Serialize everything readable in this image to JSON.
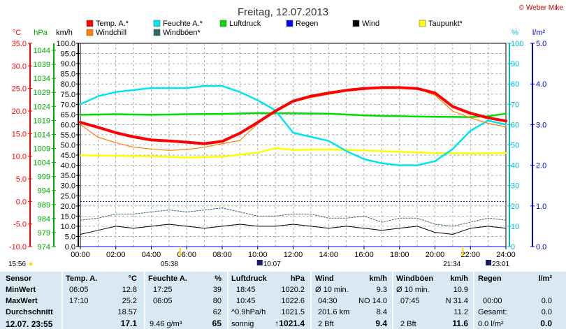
{
  "title": "Freitag, 12.07.2013",
  "copyright": "© Weber Mike",
  "colors": {
    "temp": "#ff0000",
    "feuchte": "#00e5ee",
    "luftdruck": "#00dd00",
    "regen": "#0000ff",
    "wind": "#000000",
    "taupunkt": "#ffff00",
    "windchill": "#ff8000",
    "windboeen": "#336666"
  },
  "legend": [
    {
      "key": "temp",
      "label": "Temp. A.*",
      "color": "#ff0000"
    },
    {
      "key": "feuchte",
      "label": "Feuchte A.*",
      "color": "#00e5ee"
    },
    {
      "key": "luftdruck",
      "label": "Luftdruck",
      "color": "#00dd00"
    },
    {
      "key": "regen",
      "label": "Regen",
      "color": "#0000ff"
    },
    {
      "key": "wind",
      "label": "Wind",
      "color": "#000000"
    },
    {
      "key": "taupunkt",
      "label": "Taupunkt*",
      "color": "#ffff00"
    },
    {
      "key": "windchill",
      "label": "Windchill",
      "color": "#ff8000"
    },
    {
      "key": "windboeen",
      "label": "Windböen*",
      "color": "#336666"
    }
  ],
  "axis_units": {
    "temp": "°C",
    "pressure": "hPa",
    "wind": "km/h",
    "humidity": "%",
    "rain": "l/m²"
  },
  "sun": {
    "sunrise": "05:38",
    "sunset": "21:34",
    "moonrise": "10:07",
    "moonset": "23:01",
    "first_label": "15:56"
  },
  "chart_data": {
    "type": "line",
    "x_unit": "hours",
    "x_ticks": [
      "00:00",
      "02:00",
      "04:00",
      "06:00",
      "08:00",
      "10:00",
      "12:00",
      "14:00",
      "16:00",
      "18:00",
      "20:00",
      "22:00",
      "24:00"
    ],
    "xlim": [
      0,
      24
    ],
    "axes": {
      "temp_c": {
        "ylim": [
          -10,
          35
        ],
        "ticks": [
          "35.0",
          "30.0",
          "25.0",
          "20.0",
          "15.0",
          "10.0",
          "5.0",
          "0.0",
          "-5.0",
          "-10.0"
        ]
      },
      "pressure_hpa": {
        "ylim": [
          974,
          1046.5
        ],
        "ticks": [
          "1044",
          "1039",
          "1034",
          "1029",
          "1024",
          "1019",
          "1014",
          "1009",
          "1004",
          "999",
          "994",
          "989",
          "984",
          "979",
          "974"
        ]
      },
      "wind_kmh": {
        "ylim": [
          0,
          100
        ],
        "ticks": [
          "100.0",
          "95.0",
          "90.0",
          "85.0",
          "80.0",
          "75.0",
          "70.0",
          "65.0",
          "60.0",
          "55.0",
          "50.0",
          "45.0",
          "40.0",
          "35.0",
          "30.0",
          "25.0",
          "20.0",
          "15.0",
          "10.0",
          "5.0",
          "0.0"
        ]
      },
      "humidity_pct": {
        "ylim": [
          0,
          100
        ],
        "ticks": [
          "100",
          "90",
          "80",
          "70",
          "60",
          "50",
          "40",
          "30",
          "20",
          "10",
          "0"
        ]
      },
      "rain_lm2": {
        "ylim": [
          0,
          5
        ],
        "ticks": [
          "5.0",
          "4.0",
          "3.0",
          "2.0",
          "1.0",
          "0.0"
        ]
      }
    },
    "series": [
      {
        "name": "Temp. A.*",
        "axis": "temp_c",
        "x": [
          0,
          1,
          2,
          3,
          4,
          5,
          6,
          7,
          8,
          9,
          10,
          11,
          12,
          13,
          14,
          15,
          16,
          17,
          18,
          19,
          20,
          21,
          22,
          23,
          24
        ],
        "y": [
          17.5,
          16.4,
          15.2,
          14.3,
          13.6,
          13.4,
          13.1,
          12.8,
          13.3,
          15.1,
          17.5,
          20.0,
          22.2,
          23.3,
          24.0,
          24.6,
          25.0,
          25.2,
          25.2,
          25.0,
          24.0,
          21.0,
          19.5,
          18.5,
          17.8
        ]
      },
      {
        "name": "Windchill",
        "axis": "temp_c",
        "x": [
          0,
          1,
          2,
          3,
          4,
          5,
          6,
          7,
          8,
          9,
          10,
          11,
          12,
          13,
          14,
          15,
          16,
          17,
          18,
          19,
          20,
          21,
          22,
          23,
          24
        ],
        "y": [
          17.0,
          14.2,
          13.0,
          12.0,
          11.6,
          11.3,
          11.5,
          12.0,
          12.8,
          13.5,
          17.2,
          19.8,
          22.0,
          23.0,
          23.7,
          24.5,
          24.8,
          25.1,
          25.2,
          25.0,
          23.5,
          20.0,
          18.5,
          17.3,
          16.5
        ]
      },
      {
        "name": "Feuchte A.*",
        "axis": "humidity_pct",
        "x": [
          0,
          1,
          2,
          3,
          4,
          5,
          6,
          7,
          8,
          9,
          10,
          11,
          12,
          13,
          14,
          15,
          16,
          17,
          18,
          19,
          20,
          21,
          22,
          23,
          24
        ],
        "y": [
          70,
          74,
          76,
          77,
          78,
          78,
          78,
          79,
          79,
          76,
          72,
          67,
          56,
          54,
          52,
          47,
          43,
          41,
          40,
          40,
          42,
          48,
          57,
          62,
          60
        ]
      },
      {
        "name": "Luftdruck",
        "axis": "pressure_hpa",
        "x": [
          0,
          2,
          4,
          6,
          8,
          10,
          12,
          14,
          16,
          18,
          20,
          22,
          23,
          24
        ],
        "y": [
          1021.0,
          1021.2,
          1021.0,
          1021.2,
          1021.3,
          1021.6,
          1021.5,
          1021.4,
          1020.8,
          1020.5,
          1020.3,
          1020.2,
          1020.5,
          1021.4
        ]
      },
      {
        "name": "Taupunkt*",
        "axis": "temp_c",
        "x": [
          0,
          2,
          4,
          6,
          8,
          10,
          11,
          12,
          14,
          16,
          18,
          20,
          22,
          24
        ],
        "y": [
          10.2,
          10.1,
          10.0,
          9.7,
          9.9,
          10.8,
          11.8,
          11.4,
          11.5,
          11.3,
          11.0,
          10.7,
          10.6,
          10.7
        ]
      },
      {
        "name": "Wind",
        "axis": "wind_kmh",
        "x": [
          0,
          1,
          2,
          3,
          4,
          5,
          6,
          7,
          8,
          9,
          10,
          11,
          12,
          13,
          14,
          15,
          16,
          17,
          18,
          19,
          20,
          21,
          22,
          23,
          24
        ],
        "y": [
          6,
          8,
          10,
          9,
          10,
          11,
          10,
          9,
          10,
          11,
          10,
          10,
          11,
          10,
          9,
          10,
          9,
          8,
          9,
          10,
          7,
          6,
          9,
          10,
          9
        ]
      },
      {
        "name": "Windböen*",
        "axis": "wind_kmh",
        "x": [
          0,
          1,
          2,
          3,
          4,
          5,
          6,
          7,
          8,
          9,
          10,
          11,
          12,
          13,
          14,
          15,
          16,
          17,
          18,
          19,
          20,
          21,
          22,
          23,
          24
        ],
        "y": [
          13,
          14,
          16,
          16,
          17,
          18,
          17,
          18,
          19,
          17,
          15,
          15,
          16,
          16,
          14,
          14,
          15,
          12,
          14,
          14,
          11,
          10,
          12,
          14,
          13
        ]
      },
      {
        "name": "Regen",
        "axis": "rain_lm2",
        "x": [
          0,
          24
        ],
        "y": [
          0,
          0
        ]
      }
    ]
  },
  "stats": {
    "rows": [
      "Sensor",
      "MinWert",
      "MaxWert",
      "Durchschnitt",
      "12.07.  23:55"
    ],
    "temp": {
      "header": "Temp. A.",
      "unit": "°C",
      "min_time": "06:05",
      "min": "12.8",
      "max_time": "17:10",
      "max": "25.2",
      "avg": "18.57",
      "current": "17.1"
    },
    "feuchte": {
      "header": "Feuchte A.",
      "unit": "%",
      "min_time": "17:25",
      "min": "39",
      "max_time": "06:05",
      "max": "80",
      "avg": "62",
      "extra": "9.46 g/m³",
      "current": "65"
    },
    "luftdruck": {
      "header": "Luftdruck",
      "unit": "hPa",
      "min_time": "18:45",
      "min": "1020.2",
      "max_time": "10:45",
      "max": "1022.6",
      "trend": "^0.9hPa/h",
      "avg": "1021.5",
      "extra": "sonnig",
      "current": "↑1021.4"
    },
    "wind": {
      "header": "Wind",
      "unit": "km/h",
      "r1_label": "Ø 10 min.",
      "r1": "9.3",
      "r2_label": "04:30",
      "r2_dir": "NO 14.0",
      "r3_label": "201.6 km",
      "r3": "8.4",
      "r4_label": "2 Bft",
      "current": "9.4"
    },
    "windboeen": {
      "header": "Windböen",
      "unit": "km/h",
      "r1_label": "Ø 10 min.",
      "r1": "10.9",
      "r2_label": "07:45",
      "r2_dir": "N 31.4",
      "r3": "11.2",
      "r4_label": "2 Bft",
      "current": "11.6"
    },
    "regen": {
      "header": "Regen",
      "unit": "l/m²",
      "r2_label": "00:00",
      "r2": "0.0",
      "r3_label": "Gesamt:",
      "r3": "0.0",
      "r4_label": "0.0 l/m²",
      "current": "0.0"
    }
  }
}
